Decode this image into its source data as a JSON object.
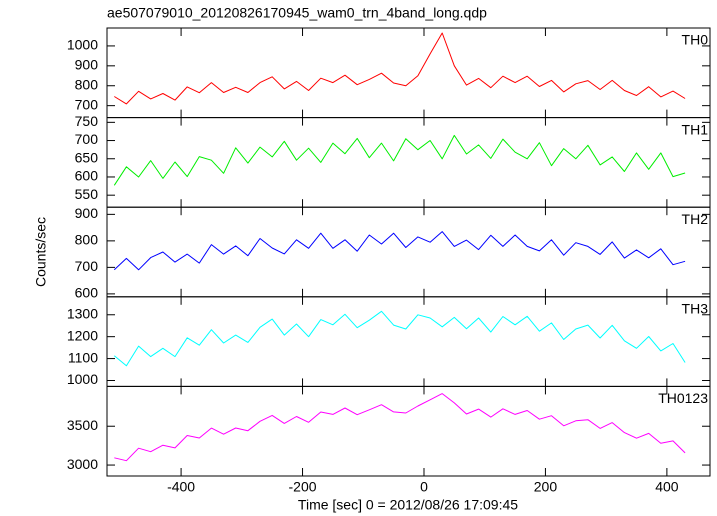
{
  "chart_data": {
    "type": "line",
    "title": "ae507079010_20120826170945_wam0_trn_4band_long.qdp",
    "x_label": "Time [sec] 0 = 2012/08/26 17:09:45",
    "y_label": "Counts/sec",
    "xlim": [
      -522,
      471
    ],
    "xticks": [
      -400,
      -200,
      0,
      200,
      400
    ],
    "x": [
      -510,
      -490,
      -470,
      -450,
      -430,
      -410,
      -390,
      -370,
      -350,
      -330,
      -310,
      -290,
      -270,
      -250,
      -230,
      -210,
      -190,
      -170,
      -150,
      -130,
      -110,
      -90,
      -70,
      -50,
      -30,
      -10,
      10,
      30,
      50,
      70,
      90,
      110,
      130,
      150,
      170,
      190,
      210,
      230,
      250,
      270,
      290,
      310,
      330,
      350,
      370,
      390,
      410,
      430
    ],
    "series": [
      {
        "name": "TH0",
        "color": "#ff0000",
        "ylim": [
          640,
          1090
        ],
        "yticks": [
          700,
          800,
          900,
          1000
        ],
        "values": [
          746,
          709,
          772,
          734,
          761,
          728,
          794,
          765,
          816,
          766,
          792,
          766,
          816,
          845,
          784,
          822,
          776,
          838,
          816,
          853,
          805,
          832,
          863,
          814,
          800,
          850,
          960,
          1065,
          900,
          803,
          837,
          790,
          848,
          816,
          848,
          796,
          827,
          769,
          810,
          826,
          781,
          827,
          776,
          751,
          795,
          744,
          773,
          736
        ]
      },
      {
        "name": "TH1",
        "color": "#00ee00",
        "ylim": [
          517,
          763
        ],
        "yticks": [
          550,
          600,
          650,
          700,
          750
        ],
        "values": [
          577,
          628,
          600,
          645,
          596,
          641,
          601,
          656,
          646,
          610,
          680,
          638,
          682,
          655,
          698,
          646,
          679,
          640,
          693,
          664,
          706,
          653,
          693,
          644,
          705,
          675,
          700,
          650,
          714,
          663,
          688,
          651,
          704,
          668,
          650,
          694,
          631,
          678,
          650,
          687,
          633,
          655,
          615,
          666,
          621,
          666,
          601,
          611
        ]
      },
      {
        "name": "TH2",
        "color": "#0000ff",
        "ylim": [
          589,
          927
        ],
        "yticks": [
          600,
          700,
          800,
          900
        ],
        "values": [
          691,
          734,
          691,
          737,
          758,
          720,
          750,
          716,
          786,
          750,
          781,
          744,
          809,
          773,
          751,
          804,
          772,
          829,
          772,
          804,
          761,
          822,
          788,
          829,
          775,
          815,
          795,
          835,
          779,
          803,
          767,
          821,
          779,
          822,
          779,
          762,
          804,
          746,
          793,
          779,
          749,
          796,
          735,
          766,
          736,
          770,
          710,
          723
        ]
      },
      {
        "name": "TH3",
        "color": "#00ffff",
        "ylim": [
          973,
          1382
        ],
        "yticks": [
          1000,
          1100,
          1200,
          1300
        ],
        "values": [
          1113,
          1067,
          1157,
          1109,
          1147,
          1109,
          1195,
          1161,
          1232,
          1171,
          1207,
          1174,
          1243,
          1280,
          1207,
          1258,
          1200,
          1278,
          1254,
          1302,
          1241,
          1275,
          1316,
          1253,
          1235,
          1300,
          1285,
          1245,
          1288,
          1236,
          1285,
          1221,
          1292,
          1254,
          1293,
          1225,
          1263,
          1187,
          1235,
          1253,
          1194,
          1252,
          1181,
          1147,
          1201,
          1135,
          1169,
          1082
        ]
      },
      {
        "name": "TH0123",
        "color": "#ff00ff",
        "ylim": [
          2859,
          4013
        ],
        "yticks": [
          3000,
          3500
        ],
        "values": [
          3094,
          3056,
          3217,
          3172,
          3256,
          3221,
          3380,
          3348,
          3476,
          3398,
          3477,
          3442,
          3564,
          3640,
          3536,
          3625,
          3550,
          3683,
          3652,
          3735,
          3648,
          3711,
          3777,
          3684,
          3670,
          3760,
          3840,
          3920,
          3800,
          3657,
          3721,
          3618,
          3725,
          3652,
          3703,
          3590,
          3635,
          3506,
          3570,
          3584,
          3472,
          3547,
          3418,
          3346,
          3408,
          3280,
          3311,
          3156
        ]
      }
    ]
  }
}
